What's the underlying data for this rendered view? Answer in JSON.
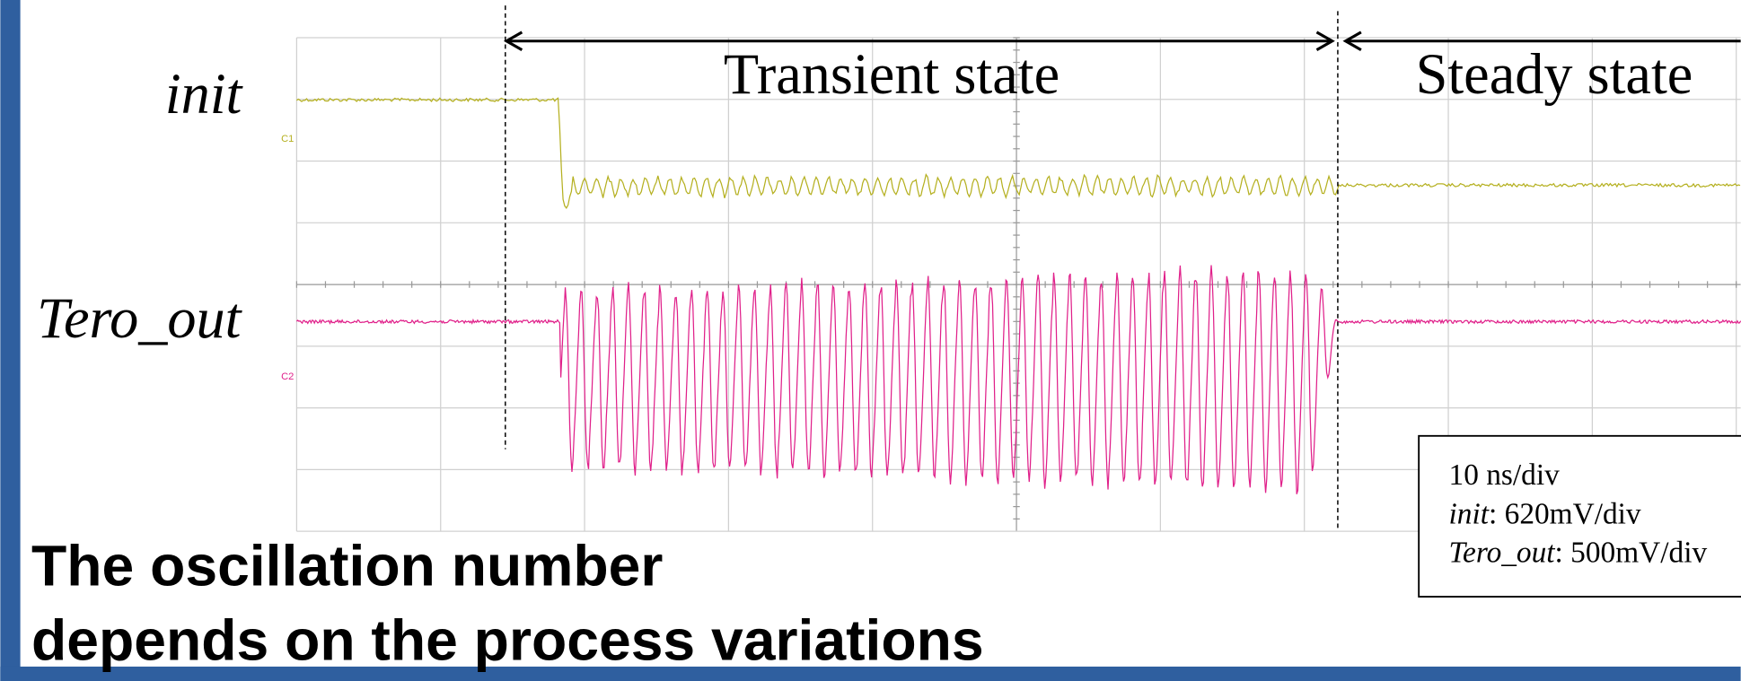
{
  "signal_labels": [
    "init",
    "Tero_out"
  ],
  "channel_markers": [
    "C1",
    "C2"
  ],
  "phases": {
    "transient": "Transient state",
    "steady": "Steady state"
  },
  "scale_box": {
    "timebase": "10 ns/div",
    "channels": [
      {
        "name": "init",
        "scale": ": 620mV/div"
      },
      {
        "name": "Tero_out",
        "scale": ": 500mV/div"
      }
    ]
  },
  "heading": [
    "The oscillation number",
    "depends on the process variations"
  ]
}
